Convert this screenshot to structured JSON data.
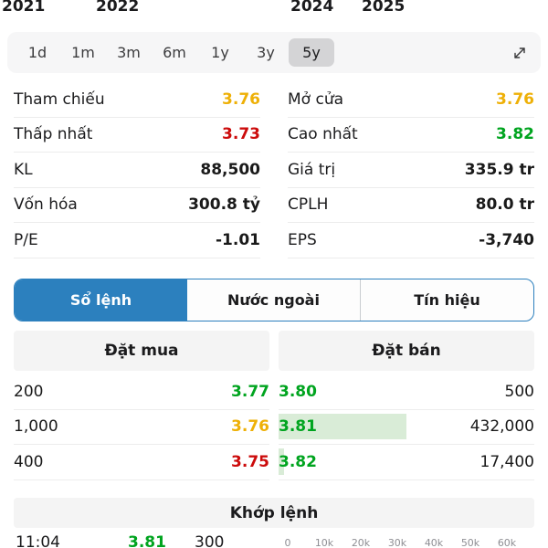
{
  "chart_axis": {
    "years": [
      "2021",
      "2022",
      "2024",
      "2025"
    ]
  },
  "range_selector": {
    "options": [
      "1d",
      "1m",
      "3m",
      "6m",
      "1y",
      "3y",
      "5y"
    ],
    "selected": "5y",
    "expand_icon": "expand-diagonal-arrow"
  },
  "stats": {
    "left": [
      {
        "label": "Tham chiếu",
        "value": "3.76",
        "color": "yellow"
      },
      {
        "label": "Thấp nhất",
        "value": "3.73",
        "color": "red"
      },
      {
        "label": "KL",
        "value": "88,500",
        "color": "default"
      },
      {
        "label": "Vốn hóa",
        "value": "300.8 tỷ",
        "color": "default"
      },
      {
        "label": "P/E",
        "value": "-1.01",
        "color": "default"
      }
    ],
    "right": [
      {
        "label": "Mở cửa",
        "value": "3.76",
        "color": "yellow"
      },
      {
        "label": "Cao nhất",
        "value": "3.82",
        "color": "green"
      },
      {
        "label": "Giá trị",
        "value": "335.9 tr",
        "color": "default"
      },
      {
        "label": "CPLH",
        "value": "80.0 tr",
        "color": "default"
      },
      {
        "label": "EPS",
        "value": "-3,740",
        "color": "default"
      }
    ]
  },
  "tabs": {
    "items": [
      {
        "label": "Sổ lệnh",
        "selected": true
      },
      {
        "label": "Nước ngoài",
        "selected": false
      },
      {
        "label": "Tín hiệu",
        "selected": false
      }
    ]
  },
  "order_book": {
    "buy_header": "Đặt mua",
    "sell_header": "Đặt bán",
    "buy_rows": [
      {
        "volume": "200",
        "price": "3.77",
        "price_color": "green"
      },
      {
        "volume": "1,000",
        "price": "3.76",
        "price_color": "yellow"
      },
      {
        "volume": "400",
        "price": "3.75",
        "price_color": "red"
      }
    ],
    "sell_rows": [
      {
        "price": "3.80",
        "volume": "500",
        "price_color": "green",
        "bar_percent": 0
      },
      {
        "price": "3.81",
        "volume": "432,000",
        "price_color": "green",
        "bar_percent": 50
      },
      {
        "price": "3.82",
        "volume": "17,400",
        "price_color": "green",
        "bar_percent": 2
      }
    ],
    "bar_color": "#d9ecd7"
  },
  "matched_orders": {
    "header": "Khớp lệnh",
    "rows": [
      {
        "time": "11:04",
        "price": "3.81",
        "price_color": "green",
        "volume": "300"
      }
    ],
    "axis_labels": [
      "0",
      "10k",
      "20k",
      "30k",
      "40k",
      "50k",
      "60k"
    ]
  },
  "colors": {
    "accent_blue": "#2c80be",
    "up_green": "#00a41f",
    "down_red": "#cc0b0b",
    "reference_yellow": "#eeb007",
    "sell_bar_green": "#d9ecd7"
  }
}
